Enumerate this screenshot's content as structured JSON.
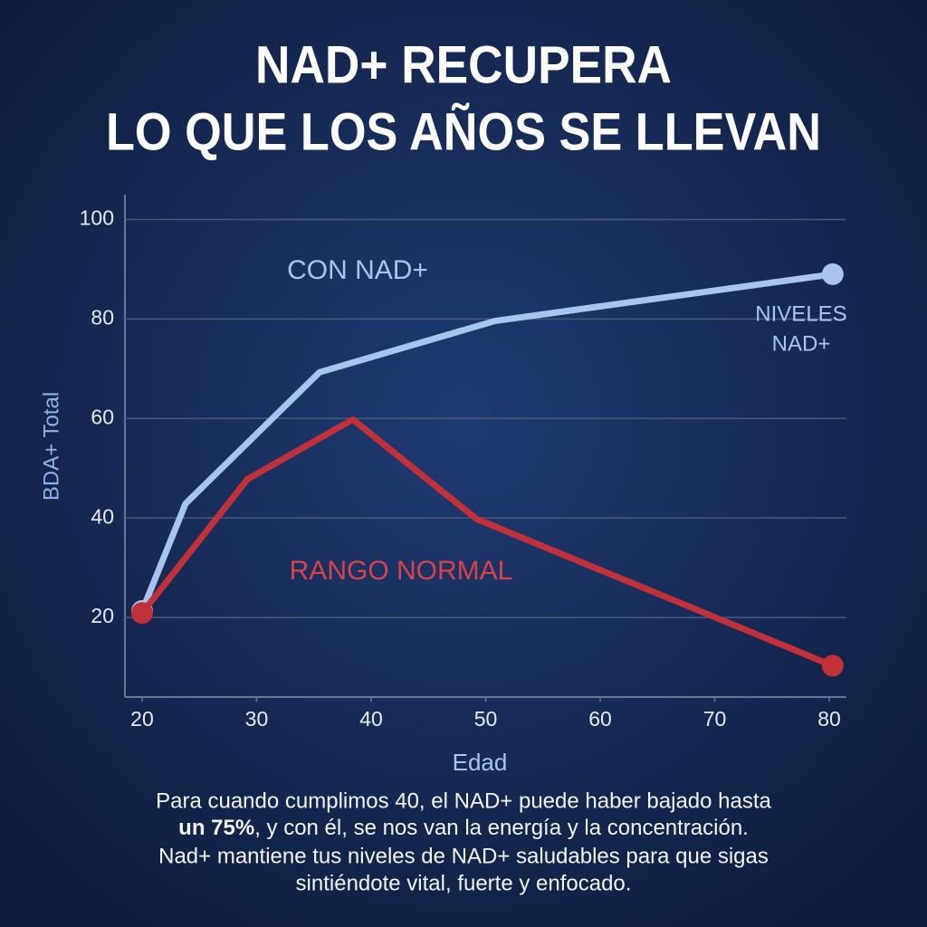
{
  "chart_data": {
    "type": "line",
    "title_lines": [
      "NAD+ RECUPERA",
      "LO QUE LOS AÑOS SE LLEVAN"
    ],
    "ylabel": "BDA+ Total",
    "xlabel": "Edad",
    "xlim": [
      18.5,
      81.5
    ],
    "xticks": [
      20,
      30,
      40,
      50,
      60,
      70,
      80
    ],
    "ylim": [
      4,
      105
    ],
    "yticks": [
      20,
      40,
      60,
      80,
      100
    ],
    "grid": true,
    "series": [
      {
        "name": "CON NAD+",
        "color": "#a9c4f0",
        "x": [
          20,
          23.8,
          35.5,
          50.8,
          80.3
        ],
        "values": [
          21.3,
          42.9,
          69.3,
          79.6,
          89.0
        ]
      },
      {
        "name": "RANGO NORMAL",
        "color": "#c0313a",
        "x": [
          20,
          29.2,
          38.4,
          49.2,
          80.3
        ],
        "values": [
          20.9,
          47.8,
          59.8,
          39.8,
          10.3
        ]
      }
    ],
    "annotations": [
      "NIVELES",
      "NAD+"
    ]
  },
  "caption": [
    [
      "Para cuando cumplimos 40, el NAD+ puede haber bajado hasta"
    ],
    [
      "un 75%",
      ", y con él, se nos van la energía y la concentración."
    ],
    [
      "Nad+ mantiene tus niveles de NAD+ saludables para que sigas"
    ],
    [
      "sintiéndote vital, fuerte y enfocado."
    ]
  ]
}
